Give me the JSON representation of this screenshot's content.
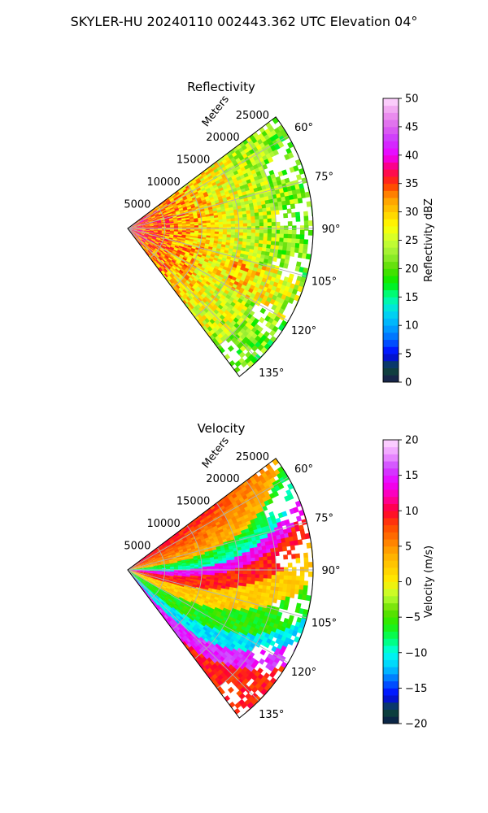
{
  "figure": {
    "suptitle": "SKYLER-HU  20240110  002443.362 UTC Elevation 04°"
  },
  "chart_data": [
    {
      "type": "heatmap",
      "projection": "polar-sector",
      "title": "Reflectivity",
      "radial_label": "Meters",
      "azimuth_range_deg": [
        53,
        143
      ],
      "range_max_m": 25000,
      "radial_ticks": [
        5000,
        10000,
        15000,
        20000,
        25000
      ],
      "radial_tick_labels": [
        "5000",
        "10000",
        "15000",
        "20000",
        "25000"
      ],
      "azimuth_ticks_deg": [
        60,
        75,
        90,
        105,
        120,
        135
      ],
      "azimuth_tick_labels": [
        "60°",
        "75°",
        "90°",
        "105°",
        "120°",
        "135°"
      ],
      "colorbar": {
        "label": "Reflectivity dBZ",
        "range": [
          0,
          50
        ],
        "ticks": [
          0,
          5,
          10,
          15,
          20,
          25,
          30,
          35,
          40,
          45,
          50
        ],
        "tick_labels": [
          "0",
          "5",
          "10",
          "15",
          "20",
          "25",
          "30",
          "35",
          "40",
          "45",
          "50"
        ],
        "colormap": [
          {
            "v": 0,
            "c": "#1a1a4e"
          },
          {
            "v": 2.5,
            "c": "#0d4a3a"
          },
          {
            "v": 5,
            "c": "#0000ff"
          },
          {
            "v": 7.5,
            "c": "#0066ff"
          },
          {
            "v": 10,
            "c": "#00aaff"
          },
          {
            "v": 12.5,
            "c": "#00ddee"
          },
          {
            "v": 15,
            "c": "#00ff99"
          },
          {
            "v": 17.5,
            "c": "#00ee00"
          },
          {
            "v": 20,
            "c": "#55dd00"
          },
          {
            "v": 22.5,
            "c": "#99ee33"
          },
          {
            "v": 25,
            "c": "#ccff33"
          },
          {
            "v": 27.5,
            "c": "#ffff00"
          },
          {
            "v": 30,
            "c": "#ffcc00"
          },
          {
            "v": 32.5,
            "c": "#ff9900"
          },
          {
            "v": 35,
            "c": "#ff3300"
          },
          {
            "v": 37.5,
            "c": "#ff0066"
          },
          {
            "v": 40,
            "c": "#ee00ff"
          },
          {
            "v": 42.5,
            "c": "#cc33ff"
          },
          {
            "v": 45,
            "c": "#dd66ee"
          },
          {
            "v": 47.5,
            "c": "#ee99ee"
          },
          {
            "v": 50,
            "c": "#ffddff"
          }
        ]
      }
    },
    {
      "type": "heatmap",
      "projection": "polar-sector",
      "title": "Velocity",
      "radial_label": "Meters",
      "azimuth_range_deg": [
        53,
        143
      ],
      "range_max_m": 25000,
      "radial_ticks": [
        5000,
        10000,
        15000,
        20000,
        25000
      ],
      "radial_tick_labels": [
        "5000",
        "10000",
        "15000",
        "20000",
        "25000"
      ],
      "azimuth_ticks_deg": [
        60,
        75,
        90,
        105,
        120,
        135
      ],
      "azimuth_tick_labels": [
        "60°",
        "75°",
        "90°",
        "105°",
        "120°",
        "135°"
      ],
      "colorbar": {
        "label": "Velocity (m/s)",
        "range": [
          -20,
          20
        ],
        "ticks": [
          -20,
          -15,
          -10,
          -5,
          0,
          5,
          10,
          15,
          20
        ],
        "tick_labels": [
          "−20",
          "−15",
          "−10",
          "−5",
          "0",
          "5",
          "10",
          "15",
          "20"
        ],
        "colormap": [
          {
            "v": -20,
            "c": "#0a1a4a"
          },
          {
            "v": -18,
            "c": "#0d4a3a"
          },
          {
            "v": -16,
            "c": "#0000ff"
          },
          {
            "v": -14,
            "c": "#0066ff"
          },
          {
            "v": -12,
            "c": "#00ccff"
          },
          {
            "v": -10,
            "c": "#00ffee"
          },
          {
            "v": -8,
            "c": "#00ff66"
          },
          {
            "v": -6,
            "c": "#22ee00"
          },
          {
            "v": -4,
            "c": "#66dd00"
          },
          {
            "v": -2,
            "c": "#bbff33"
          },
          {
            "v": 0,
            "c": "#ffee00"
          },
          {
            "v": 2,
            "c": "#ffcc00"
          },
          {
            "v": 4,
            "c": "#ffaa00"
          },
          {
            "v": 6,
            "c": "#ff7700"
          },
          {
            "v": 8,
            "c": "#ff4400"
          },
          {
            "v": 10,
            "c": "#ff0033"
          },
          {
            "v": 12,
            "c": "#ff00aa"
          },
          {
            "v": 14,
            "c": "#ee00ff"
          },
          {
            "v": 16,
            "c": "#cc44ff"
          },
          {
            "v": 18,
            "c": "#ee99ff"
          },
          {
            "v": 20,
            "c": "#ffddff"
          }
        ]
      }
    }
  ]
}
